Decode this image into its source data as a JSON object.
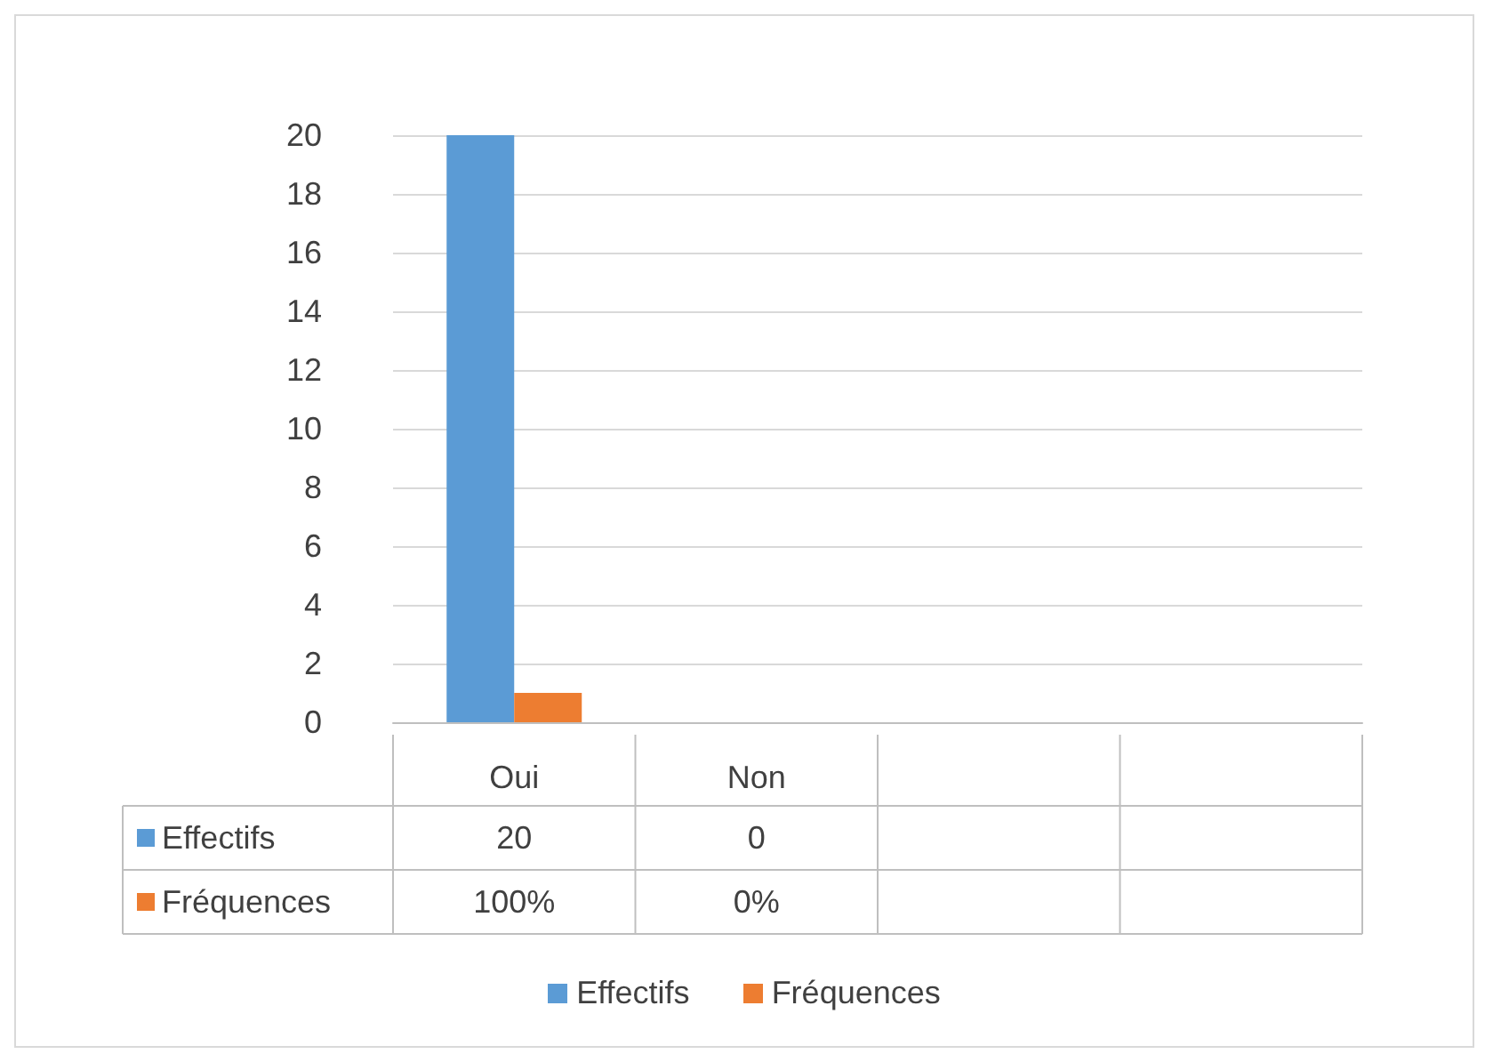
{
  "chart_data": {
    "type": "bar",
    "categories": [
      "Oui",
      "Non",
      null,
      null
    ],
    "series": [
      {
        "name": "Effectifs",
        "color": "#5b9bd5",
        "values": [
          20,
          0,
          null,
          null
        ],
        "value_labels": [
          "20",
          "0",
          null,
          null
        ]
      },
      {
        "name": "Fréquences",
        "color": "#ed7d31",
        "values": [
          1,
          0,
          null,
          null
        ],
        "value_labels": [
          "100%",
          "0%",
          null,
          null
        ]
      }
    ],
    "ylim": [
      0,
      20
    ],
    "yticks": [
      0,
      2,
      4,
      6,
      8,
      10,
      12,
      14,
      16,
      18,
      20
    ],
    "grid": "y",
    "legend": "bottom"
  }
}
